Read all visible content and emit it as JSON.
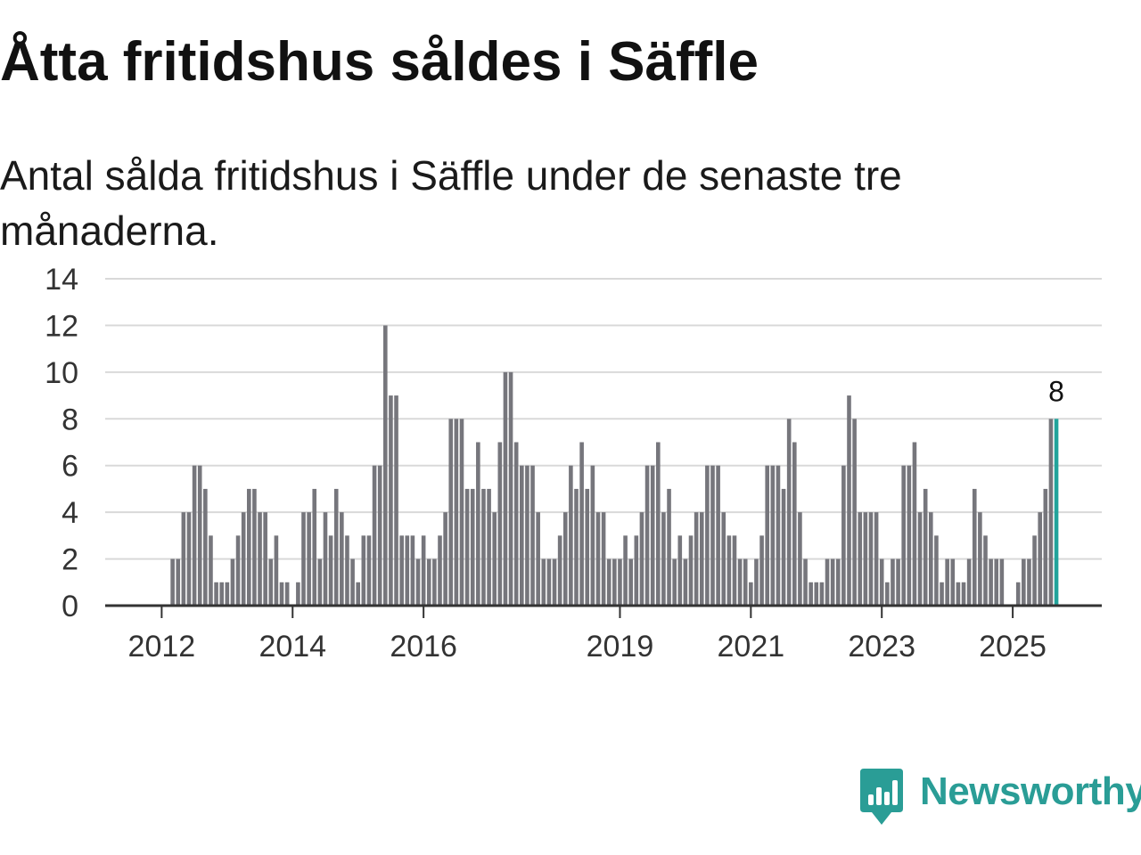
{
  "title": "Åtta fritidshus såldes i Säffle",
  "subtitle": "Antal sålda fritidshus i Säffle under de senaste tre månaderna.",
  "brand": {
    "name": "Newsworthy",
    "color": "#2a9d96"
  },
  "colors": {
    "bar": "#76767c",
    "highlight": "#22a39b",
    "grid": "#d9d9d9",
    "axis": "#333333"
  },
  "chart_data": {
    "type": "bar",
    "title": "Åtta fritidshus såldes i Säffle",
    "subtitle": "Antal sålda fritidshus i Säffle under de senaste tre månaderna.",
    "xlabel": "",
    "ylabel": "",
    "ylim": [
      0,
      14
    ],
    "y_ticks": [
      "0",
      "2",
      "4",
      "6",
      "8",
      "10",
      "12",
      "14"
    ],
    "x_ticks": [
      {
        "label": "2012",
        "index": 9
      },
      {
        "label": "2014",
        "index": 33
      },
      {
        "label": "2016",
        "index": 57
      },
      {
        "label": "2019",
        "index": 93
      },
      {
        "label": "2021",
        "index": 117
      },
      {
        "label": "2023",
        "index": 141
      },
      {
        "label": "2025",
        "index": 165
      }
    ],
    "first_month": "2011-04",
    "highlight_label": "8",
    "values": [
      0,
      0,
      0,
      0,
      0,
      0,
      0,
      0,
      0,
      0,
      0,
      2,
      2,
      4,
      4,
      6,
      6,
      5,
      3,
      1,
      1,
      1,
      2,
      3,
      4,
      5,
      5,
      4,
      4,
      2,
      3,
      1,
      1,
      0,
      1,
      4,
      4,
      5,
      2,
      4,
      3,
      5,
      4,
      3,
      2,
      1,
      3,
      3,
      6,
      6,
      12,
      9,
      9,
      3,
      3,
      3,
      2,
      3,
      2,
      2,
      3,
      4,
      8,
      8,
      8,
      5,
      5,
      7,
      5,
      5,
      4,
      7,
      10,
      10,
      7,
      6,
      6,
      6,
      4,
      2,
      2,
      2,
      3,
      4,
      6,
      5,
      7,
      5,
      6,
      4,
      4,
      2,
      2,
      2,
      3,
      2,
      3,
      4,
      6,
      6,
      7,
      4,
      5,
      2,
      3,
      2,
      3,
      4,
      4,
      6,
      6,
      6,
      4,
      3,
      3,
      2,
      2,
      1,
      2,
      3,
      6,
      6,
      6,
      5,
      8,
      7,
      4,
      2,
      1,
      1,
      1,
      2,
      2,
      2,
      6,
      9,
      8,
      4,
      4,
      4,
      4,
      2,
      1,
      2,
      2,
      6,
      6,
      7,
      4,
      5,
      4,
      3,
      1,
      2,
      2,
      1,
      1,
      2,
      5,
      4,
      3,
      2,
      2,
      2,
      0,
      0,
      1,
      2,
      2,
      3,
      4,
      5,
      8,
      8
    ]
  }
}
